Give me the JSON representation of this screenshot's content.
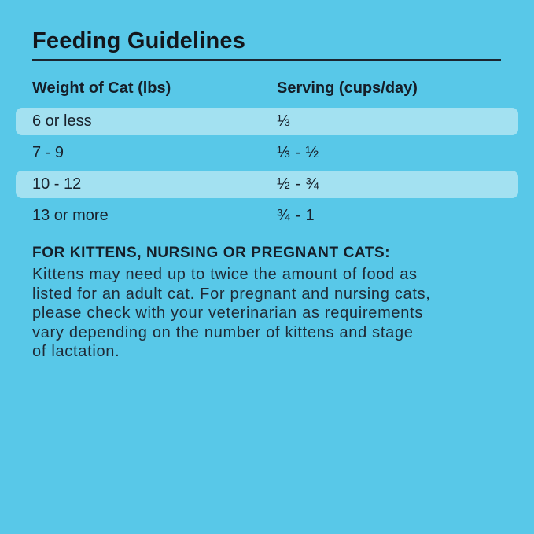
{
  "page": {
    "background_color": "#58C8E8",
    "highlight_color": "#A3E1F1",
    "text_color": "#19222C"
  },
  "title": "Feeding Guidelines",
  "table": {
    "headers": {
      "weight": "Weight of Cat (lbs)",
      "serving": "Serving (cups/day)"
    },
    "rows": [
      {
        "weight": "6 or less",
        "serving": "⅓",
        "highlighted": true
      },
      {
        "weight": "7 - 9",
        "serving": "⅓ - ½",
        "highlighted": false
      },
      {
        "weight": "10 - 12",
        "serving": "½ - ¾",
        "highlighted": true
      },
      {
        "weight": "13 or more",
        "serving": "¾ - 1",
        "highlighted": false
      }
    ]
  },
  "note": {
    "heading": "FOR KITTENS, NURSING OR PREGNANT CATS:",
    "body_lines": [
      "Kittens may need up to twice the amount of food as",
      "listed for an adult cat. For pregnant and nursing cats,",
      "please check with your veterinarian as requirements",
      "vary depending on the number of kittens and stage",
      "of lactation."
    ]
  }
}
